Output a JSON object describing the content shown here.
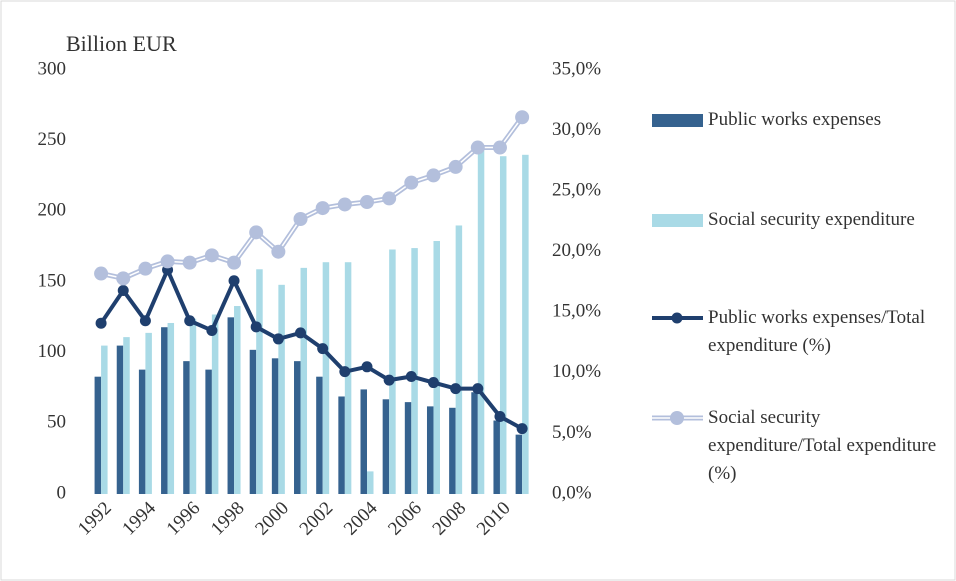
{
  "chart_data": {
    "type": "combo",
    "y_label": "Billion EUR",
    "categories": [
      "1992",
      null,
      "1994",
      null,
      "1996",
      null,
      "1998",
      null,
      "2000",
      null,
      "2002",
      null,
      "2004",
      null,
      "2006",
      null,
      "2008",
      null,
      "2010",
      null
    ],
    "ylim": [
      0,
      300
    ],
    "yticks": [
      0,
      50,
      100,
      150,
      200,
      250,
      300
    ],
    "y2lim": [
      0,
      35
    ],
    "y2ticks": [
      {
        "value": 0,
        "label": "0,0%"
      },
      {
        "value": 5,
        "label": "5,0%"
      },
      {
        "value": 10,
        "label": "10,0%"
      },
      {
        "value": 15,
        "label": "15,0%"
      },
      {
        "value": 20,
        "label": "20,0%"
      },
      {
        "value": 25,
        "label": "25,0%"
      },
      {
        "value": 30,
        "label": "30,0%"
      },
      {
        "value": 35,
        "label": "35,0%"
      }
    ],
    "legend": "right",
    "series": [
      {
        "name": "Public works expenses",
        "type": "bar",
        "color": "#35628f",
        "values": [
          83,
          105,
          88,
          118,
          94,
          88,
          125,
          102,
          96,
          94,
          83,
          69,
          74,
          67,
          65,
          62,
          61,
          72,
          52,
          42
        ]
      },
      {
        "name": "Social security expenditure",
        "type": "bar",
        "color": "#a9dae6",
        "values": [
          105,
          111,
          114,
          121,
          124,
          127,
          133,
          159,
          148,
          160,
          164,
          164,
          16,
          173,
          174,
          179,
          190,
          245,
          239,
          240
        ]
      },
      {
        "name": "Public works expenses/Total expenditure (%)",
        "type": "line",
        "axis": "y2",
        "color": "#1f3f6e",
        "values": [
          14.1,
          16.8,
          14.3,
          18.5,
          14.3,
          13.5,
          17.6,
          13.8,
          12.8,
          13.3,
          12.0,
          10.1,
          10.5,
          9.4,
          9.7,
          9.2,
          8.7,
          8.7,
          6.4,
          5.4
        ]
      },
      {
        "name": "Social security expenditure/Total expenditure (%)",
        "type": "line",
        "axis": "y2",
        "color": "#b3bfdc",
        "values": [
          18.2,
          17.8,
          18.6,
          19.2,
          19.1,
          19.7,
          19.1,
          21.6,
          20.0,
          22.7,
          23.6,
          23.9,
          24.1,
          24.4,
          25.7,
          26.3,
          27.0,
          28.6,
          28.6,
          31.1
        ]
      }
    ]
  }
}
